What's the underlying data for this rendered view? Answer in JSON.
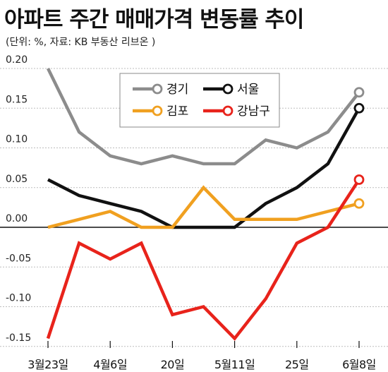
{
  "chart_data": {
    "type": "line",
    "title": "아파트 주간 매매가격 변동률 추이",
    "subtitle": "(단위: %, 자료: KB 부동산 리브온 )",
    "xlabel": "",
    "ylabel": "",
    "ylim": [
      -0.16,
      0.21
    ],
    "yticks": [
      0.2,
      0.15,
      0.1,
      0.05,
      0.0,
      -0.05,
      -0.1,
      -0.15
    ],
    "ytick_labels": [
      "0.20",
      "0.15",
      "0.10",
      "0.05",
      "0.00",
      "-0.05",
      "-0.10",
      "-0.15"
    ],
    "x_tick_labels": [
      {
        "index": 0,
        "label": "3월23일"
      },
      {
        "index": 2,
        "label": "4월6일"
      },
      {
        "index": 4,
        "label": "20일"
      },
      {
        "index": 6,
        "label": "5월11일"
      },
      {
        "index": 8,
        "label": "25일"
      },
      {
        "index": 10,
        "label": "6월8일"
      }
    ],
    "point_count": 11,
    "grid": true,
    "legend_position": "top-center",
    "series": [
      {
        "name": "경기",
        "color": "#8c8c8c",
        "values": [
          0.2,
          0.12,
          0.09,
          0.08,
          0.09,
          0.08,
          0.08,
          0.11,
          0.1,
          0.12,
          0.17
        ]
      },
      {
        "name": "서울",
        "color": "#111111",
        "values": [
          0.06,
          0.04,
          0.03,
          0.02,
          0.0,
          0.0,
          0.0,
          0.03,
          0.05,
          0.08,
          0.15
        ]
      },
      {
        "name": "김포",
        "color": "#f0a020",
        "values": [
          0.0,
          0.01,
          0.02,
          0.0,
          0.0,
          0.05,
          0.01,
          0.01,
          0.01,
          0.02,
          0.03
        ]
      },
      {
        "name": "강남구",
        "color": "#e8231b",
        "values": [
          -0.14,
          -0.02,
          -0.04,
          -0.02,
          -0.11,
          -0.1,
          -0.14,
          -0.09,
          -0.02,
          0.0,
          0.06
        ]
      }
    ]
  }
}
